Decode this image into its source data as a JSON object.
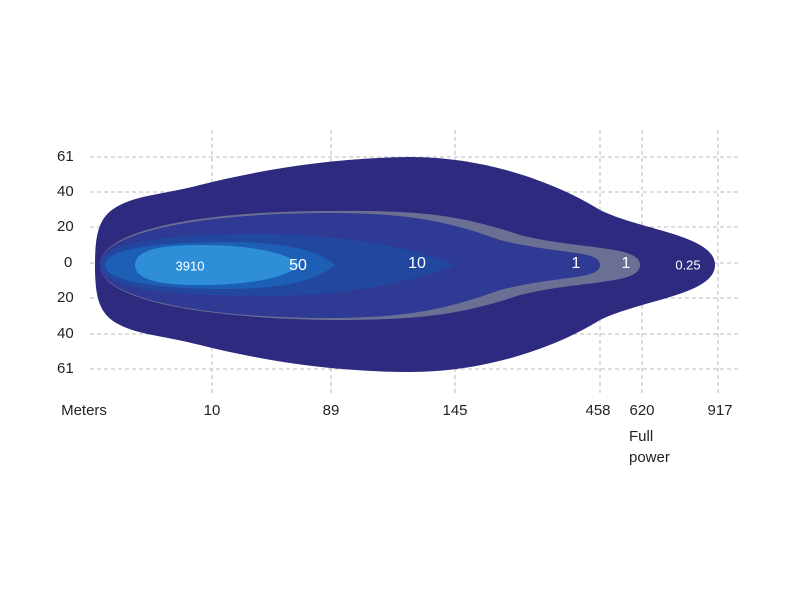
{
  "y_labels": [
    "61",
    "40",
    "20",
    "0",
    "20",
    "40",
    "61"
  ],
  "x_labels": [
    "Meters",
    "10",
    "89",
    "145",
    "458",
    "620",
    "917"
  ],
  "note": [
    "Full",
    "power"
  ],
  "zone_labels": [
    "3910",
    "50",
    "10",
    "1",
    "1",
    "0.25"
  ]
}
